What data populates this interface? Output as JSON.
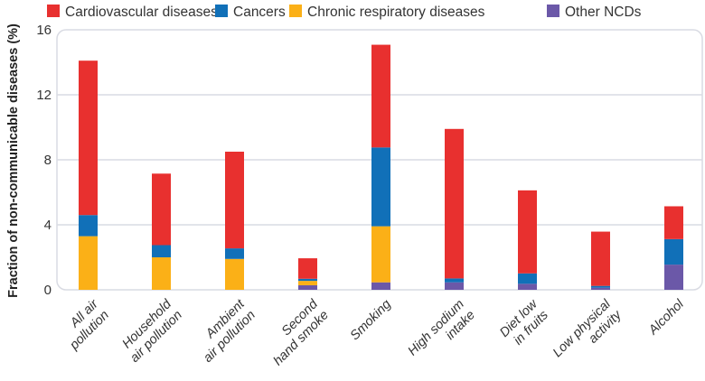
{
  "chart_data": {
    "type": "bar",
    "stacked": true,
    "title": "",
    "xlabel": "",
    "ylabel": "Fraction of non-communicable diseases (%)",
    "ylim": [
      0,
      16
    ],
    "yticks": [
      0,
      4,
      8,
      12,
      16
    ],
    "grid": true,
    "legend_position": "top",
    "categories": [
      [
        "All air",
        "pollution"
      ],
      [
        "Household",
        "air pollution"
      ],
      [
        "Ambient",
        "air pollution"
      ],
      [
        "Second",
        "hand smoke"
      ],
      [
        "Smoking"
      ],
      [
        "High sodium",
        "intake"
      ],
      [
        "Diet low",
        "in fruits"
      ],
      [
        "Low physical",
        "activity"
      ],
      [
        "Alcohol"
      ]
    ],
    "series": [
      {
        "name": "Other NCDs",
        "color": "#6b58a8",
        "values": [
          0,
          0,
          0,
          0.28,
          0.46,
          0.46,
          0.37,
          0.13,
          1.55
        ]
      },
      {
        "name": "Chronic respiratory diseases",
        "color": "#fbb017",
        "values": [
          3.3,
          2.0,
          1.9,
          0.27,
          3.45,
          0,
          0,
          0,
          0
        ]
      },
      {
        "name": "Cancers",
        "color": "#1170b8",
        "values": [
          1.3,
          0.75,
          0.65,
          0.13,
          4.85,
          0.24,
          0.64,
          0.11,
          1.57
        ]
      },
      {
        "name": "Cardiovascular diseases",
        "color": "#e8302f",
        "values": [
          9.5,
          4.4,
          5.95,
          1.26,
          6.32,
          9.2,
          5.11,
          3.34,
          2.02
        ]
      }
    ],
    "legend_order": [
      "Cardiovascular diseases",
      "Cancers",
      "Chronic respiratory diseases",
      "Other NCDs"
    ]
  }
}
